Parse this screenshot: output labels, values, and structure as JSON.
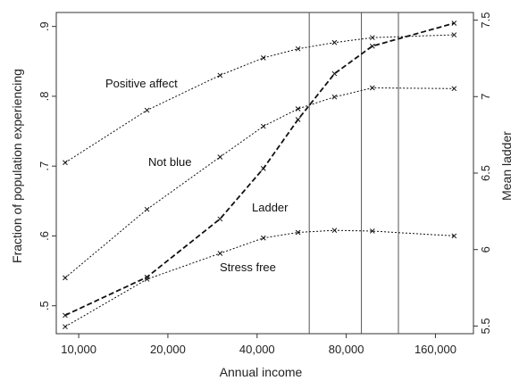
{
  "chart_data": {
    "type": "line",
    "x_scale": "log",
    "xlabel": "Annual income",
    "ylabel_left": "Fraction of population experiencing",
    "ylabel_right": "Mean ladder",
    "x_ticks": [
      {
        "value": 10000,
        "label": "10,000"
      },
      {
        "value": 20000,
        "label": "20,000"
      },
      {
        "value": 40000,
        "label": "40,000"
      },
      {
        "value": 80000,
        "label": "80,000"
      },
      {
        "value": 160000,
        "label": "160,000"
      }
    ],
    "xlim": [
      8400,
      215000
    ],
    "ylim_left": [
      0.46,
      0.92
    ],
    "ylim_right": [
      5.45,
      7.55
    ],
    "y_ticks_left": [
      {
        "value": 0.5,
        "label": ".5"
      },
      {
        "value": 0.6,
        "label": ".6"
      },
      {
        "value": 0.7,
        "label": ".7"
      },
      {
        "value": 0.8,
        "label": ".8"
      },
      {
        "value": 0.9,
        "label": ".9"
      }
    ],
    "y_ticks_right": [
      {
        "value": 5.5,
        "label": "5.5"
      },
      {
        "value": 6.0,
        "label": "6"
      },
      {
        "value": 6.5,
        "label": "6.5"
      },
      {
        "value": 7.0,
        "label": "7"
      },
      {
        "value": 7.5,
        "label": "7.5"
      }
    ],
    "vertical_lines": [
      60000,
      90000,
      120000
    ],
    "grid": false,
    "legend": "none",
    "series": [
      {
        "name": "Positive affect",
        "axis": "left",
        "style": "dotted",
        "x": [
          9000,
          17000,
          30000,
          42000,
          55000,
          73000,
          98000,
          185000
        ],
        "y": [
          0.705,
          0.78,
          0.83,
          0.855,
          0.868,
          0.877,
          0.884,
          0.888
        ]
      },
      {
        "name": "Not blue",
        "axis": "left",
        "style": "dotted",
        "x": [
          9000,
          17000,
          30000,
          42000,
          55000,
          73000,
          98000,
          185000
        ],
        "y": [
          0.54,
          0.638,
          0.713,
          0.757,
          0.782,
          0.799,
          0.812,
          0.811
        ]
      },
      {
        "name": "Stress free",
        "axis": "left",
        "style": "dotted",
        "x": [
          9000,
          17000,
          30000,
          42000,
          55000,
          73000,
          98000,
          185000
        ],
        "y": [
          0.47,
          0.538,
          0.575,
          0.597,
          0.605,
          0.608,
          0.607,
          0.6
        ]
      },
      {
        "name": "Ladder",
        "axis": "right",
        "style": "dashed",
        "x": [
          9000,
          17000,
          30000,
          42000,
          55000,
          73000,
          98000,
          185000
        ],
        "y": [
          5.57,
          5.82,
          6.2,
          6.53,
          6.85,
          7.15,
          7.33,
          7.48
        ]
      }
    ],
    "annotations": [
      {
        "text": "Positive affect",
        "series": "Positive affect"
      },
      {
        "text": "Not blue",
        "series": "Not blue"
      },
      {
        "text": "Ladder",
        "series": "Ladder"
      },
      {
        "text": "Stress free",
        "series": "Stress free"
      }
    ]
  }
}
